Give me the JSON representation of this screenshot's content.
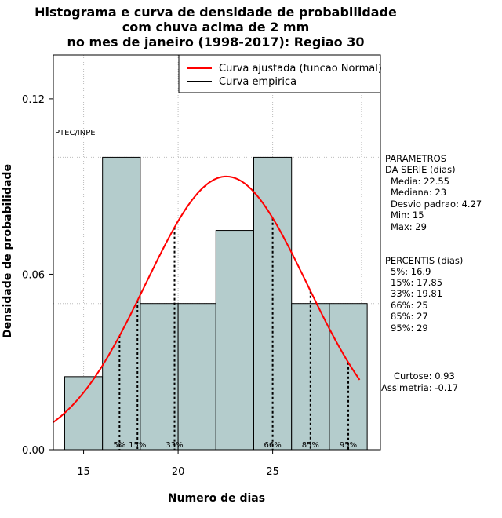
{
  "chart_data": {
    "type": "bar",
    "title_lines": [
      "Histograma e curva de densidade de probabilidade",
      "com chuva acima de 2 mm",
      "no mes de janeiro (1998-2017): Regiao 30"
    ],
    "xlabel": "Numero de dias",
    "ylabel": "Densidade de probabilidade",
    "xlim": [
      13.4,
      30.7
    ],
    "ylim": [
      0,
      0.135
    ],
    "x_ticks": [
      15,
      20,
      25
    ],
    "y_ticks": [
      {
        "v": 0,
        "label": "0.00"
      },
      {
        "v": 0.06,
        "label": "0.06"
      },
      {
        "v": 0.12,
        "label": "0.12"
      }
    ],
    "grid": true,
    "bar_color": "#b4cccc",
    "histogram": [
      {
        "x0": 14,
        "x1": 16,
        "density": 0.025
      },
      {
        "x0": 16,
        "x1": 18,
        "density": 0.1
      },
      {
        "x0": 18,
        "x1": 20,
        "density": 0.05
      },
      {
        "x0": 20,
        "x1": 22,
        "density": 0.05
      },
      {
        "x0": 22,
        "x1": 24,
        "density": 0.075
      },
      {
        "x0": 24,
        "x1": 26,
        "density": 0.1
      },
      {
        "x0": 26,
        "x1": 28,
        "density": 0.05
      },
      {
        "x0": 28,
        "x1": 30,
        "density": 0.05
      }
    ],
    "normal_curve": {
      "mean": 22.55,
      "sd": 4.27,
      "x_from": 13.4,
      "x_to": 29.6,
      "color": "#ff0000"
    },
    "percentile_lines": [
      {
        "label": "5%",
        "x": 16.9
      },
      {
        "label": "15%",
        "x": 17.85
      },
      {
        "label": "33%",
        "x": 19.81
      },
      {
        "label": "66%",
        "x": 25
      },
      {
        "label": "85%",
        "x": 27
      },
      {
        "label": "95%",
        "x": 29
      }
    ],
    "legend": [
      {
        "label": "Curva ajustada (funcao Normal)",
        "color": "#ff0000"
      },
      {
        "label": "Curva empirica",
        "color": "#000000"
      }
    ],
    "legend_position": "top-right",
    "watermark": "PTEC/INPE"
  },
  "stats": {
    "parametros_title": [
      "PARAMETROS",
      "DA SERIE (dias)"
    ],
    "parametros": [
      "Media: 22.55",
      "Mediana: 23",
      "Desvio padrao: 4.27",
      "Min: 15",
      "Max: 29"
    ],
    "percentis_title": "PERCENTIS (dias)",
    "percentis": [
      "5%: 16.9",
      "15%: 17.85",
      "33%: 19.81",
      "66%: 25",
      "85%: 27",
      "95%: 29"
    ],
    "curtose": "Curtose: 0.93",
    "assimetria": "Assimetria: -0.17"
  }
}
